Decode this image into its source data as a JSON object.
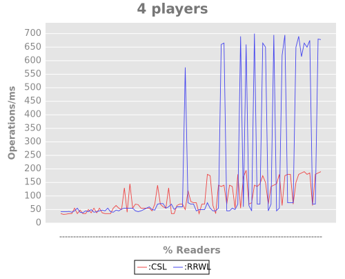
{
  "chart_data": {
    "type": "line",
    "title": "4 players",
    "xlabel": "% Readers",
    "ylabel": "Operations/ms",
    "categories": [
      null,
      null,
      null,
      null,
      null,
      null,
      null,
      null,
      null,
      null,
      null,
      null,
      null,
      null,
      null,
      null,
      null,
      null,
      null,
      null,
      null,
      null,
      null,
      null,
      null,
      null,
      null,
      null,
      null,
      null,
      null,
      null,
      null,
      null,
      null,
      null,
      null,
      null,
      null,
      null,
      null,
      null,
      null,
      null,
      null,
      null,
      null,
      null,
      null,
      null,
      null,
      null,
      null,
      null,
      null,
      null,
      null,
      null,
      null,
      null,
      null,
      null,
      null,
      null,
      null,
      null,
      null,
      null,
      null,
      null,
      null,
      null,
      null,
      null,
      null,
      null,
      null,
      null,
      null,
      null,
      null,
      null,
      null,
      null,
      null,
      null,
      null,
      null,
      null,
      null,
      null,
      null,
      null,
      null,
      null
    ],
    "series": [
      {
        "name": ":CSL",
        "color": "#ee4444",
        "values": [
          35,
          32,
          33,
          35,
          35,
          55,
          35,
          48,
          35,
          35,
          50,
          38,
          55,
          38,
          55,
          38,
          35,
          35,
          35,
          55,
          65,
          55,
          50,
          130,
          40,
          145,
          55,
          70,
          68,
          55,
          55,
          55,
          55,
          45,
          70,
          140,
          70,
          60,
          55,
          130,
          35,
          35,
          65,
          70,
          70,
          50,
          120,
          80,
          75,
          75,
          35,
          70,
          70,
          180,
          175,
          65,
          35,
          140,
          135,
          140,
          70,
          140,
          135,
          55,
          180,
          55,
          170,
          195,
          70,
          75,
          140,
          135,
          145,
          175,
          150,
          70,
          135,
          140,
          145,
          180,
          65,
          175,
          180,
          180,
          70,
          150,
          180,
          185,
          190,
          180,
          185,
          65,
          180,
          185,
          190
        ]
      },
      {
        "name": ":RRWL",
        "color": "#4444ee",
        "values": [
          42,
          42,
          42,
          43,
          40,
          45,
          55,
          40,
          38,
          45,
          42,
          50,
          40,
          42,
          45,
          48,
          45,
          55,
          42,
          40,
          48,
          45,
          52,
          55,
          55,
          55,
          55,
          45,
          42,
          45,
          50,
          55,
          60,
          50,
          48,
          70,
          72,
          72,
          55,
          60,
          70,
          50,
          60,
          60,
          60,
          575,
          75,
          70,
          70,
          45,
          50,
          50,
          50,
          75,
          55,
          45,
          45,
          55,
          660,
          665,
          45,
          45,
          55,
          50,
          70,
          690,
          60,
          660,
          65,
          45,
          700,
          70,
          70,
          665,
          650,
          45,
          70,
          695,
          45,
          55,
          620,
          695,
          75,
          75,
          75,
          650,
          690,
          615,
          665,
          650,
          675,
          70,
          70,
          680,
          678
        ]
      }
    ],
    "ylim": [
      0,
      740
    ],
    "yticks": [
      0,
      50,
      100,
      150,
      200,
      250,
      300,
      350,
      400,
      450,
      500,
      550,
      600,
      650,
      700
    ],
    "grid": true
  }
}
